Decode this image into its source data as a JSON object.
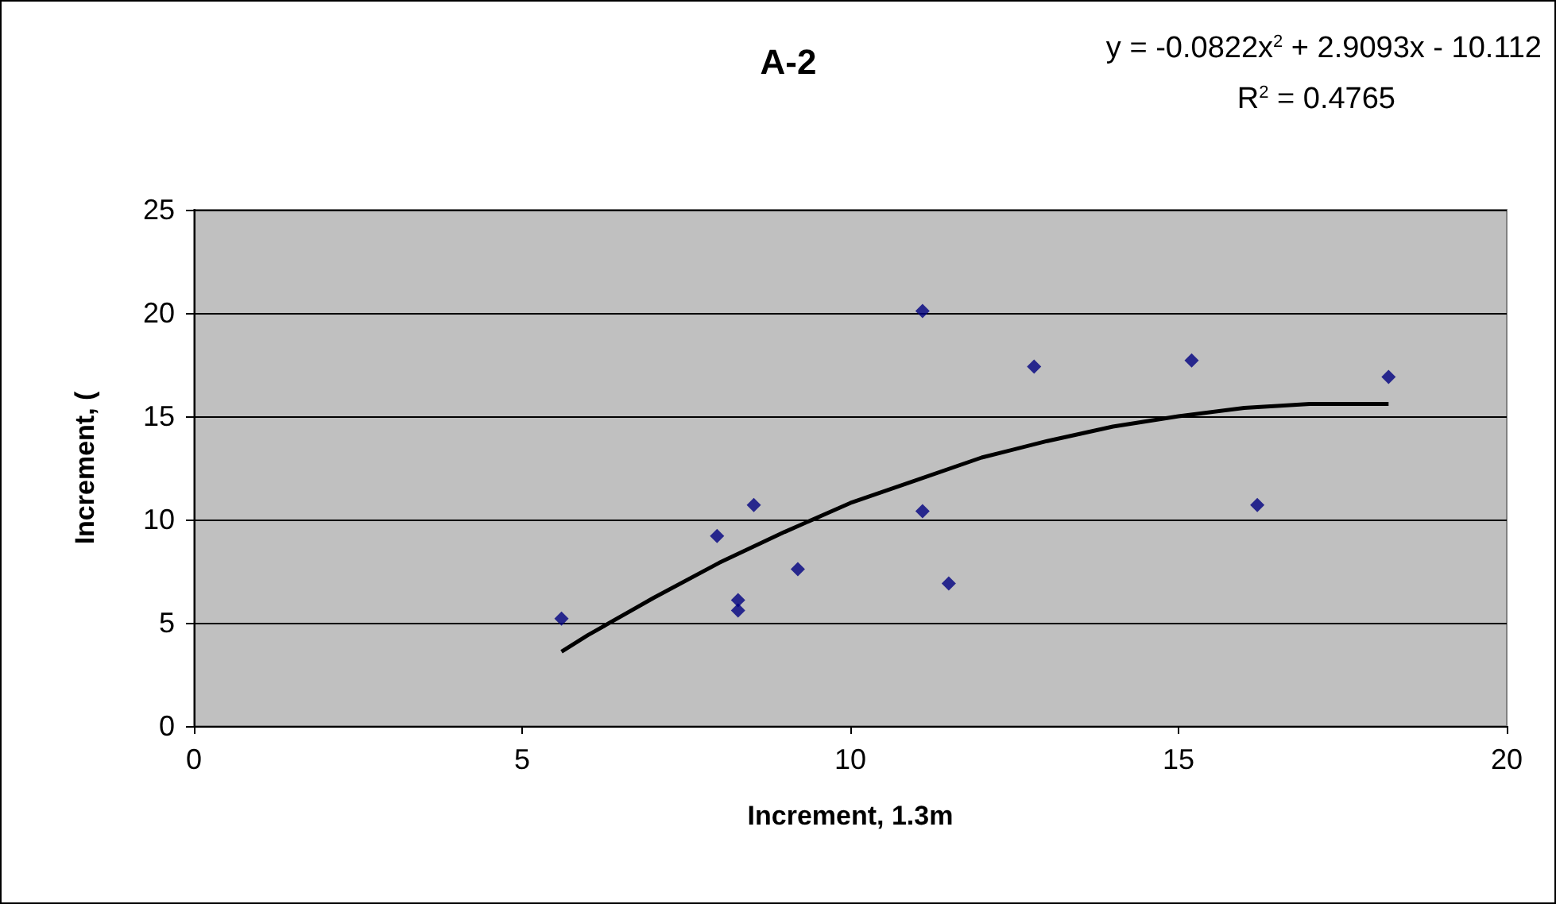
{
  "chart_data": {
    "type": "scatter",
    "title": "A-2",
    "xlabel": "Increment, 1.3m",
    "ylabel": "Increment, (",
    "annotations": [
      "y = -0.0822x$^{2}$ + 2.9093x - 10.112",
      "R$^{2}$ = 0.4765"
    ],
    "x": [
      5.6,
      7.97,
      8.53,
      8.29,
      8.29,
      9.2,
      11.1,
      11.1,
      11.5,
      12.8,
      15.2,
      16.2,
      18.2
    ],
    "series": [
      {
        "color": "#000080",
        "marker": "diamond",
        "values": [
          5.2,
          9.2,
          10.7,
          6.1,
          5.6,
          7.6,
          20.1,
          10.4,
          6.9,
          17.4,
          17.7,
          10.7,
          16.9
        ]
      },
      {
        "type": "line",
        "color": "#000000",
        "marker": "none",
        "line_style": "solid",
        "x": [
          5.6,
          6,
          7,
          8,
          9,
          10,
          11,
          12,
          13,
          14,
          15,
          16,
          17,
          18,
          18.2
        ],
        "values": [
          3.6,
          4.4,
          6.2,
          7.9,
          9.4,
          10.8,
          11.9,
          13.0,
          13.8,
          14.5,
          15.0,
          15.4,
          15.6,
          15.6,
          15.6
        ]
      }
    ],
    "xlim": [
      0,
      20
    ],
    "xticks": [
      0,
      5,
      10,
      15,
      20
    ],
    "ylim": [
      0,
      25
    ],
    "yticks": [
      0,
      5,
      10,
      15,
      20,
      25
    ],
    "grid": "y"
  }
}
